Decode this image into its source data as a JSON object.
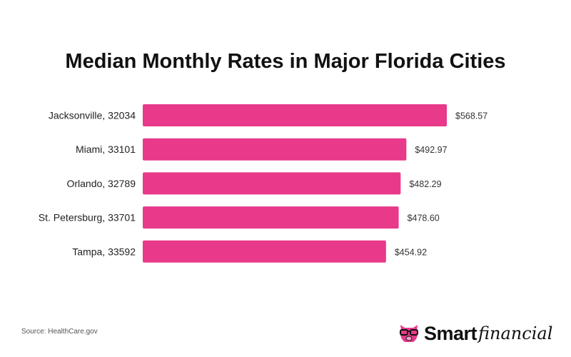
{
  "chart_data": {
    "type": "bar",
    "orientation": "horizontal",
    "title": "Median Monthly Rates in Major Florida Cities",
    "categories": [
      "Jacksonville, 32034",
      "Miami, 33101",
      "Orlando, 32789",
      "St. Petersburg, 33701",
      "Tampa, 33592"
    ],
    "values": [
      568.57,
      492.97,
      482.29,
      478.6,
      454.92
    ],
    "value_labels": [
      "$568.57",
      "$492.97",
      "$482.29",
      "$478.60",
      "$454.92"
    ],
    "xlim": [
      0,
      600
    ],
    "grid": false,
    "bar_color": "#E8398A"
  },
  "footer": {
    "source": "Source: HealthCare.gov",
    "logo_text": "Smartfinancial"
  }
}
